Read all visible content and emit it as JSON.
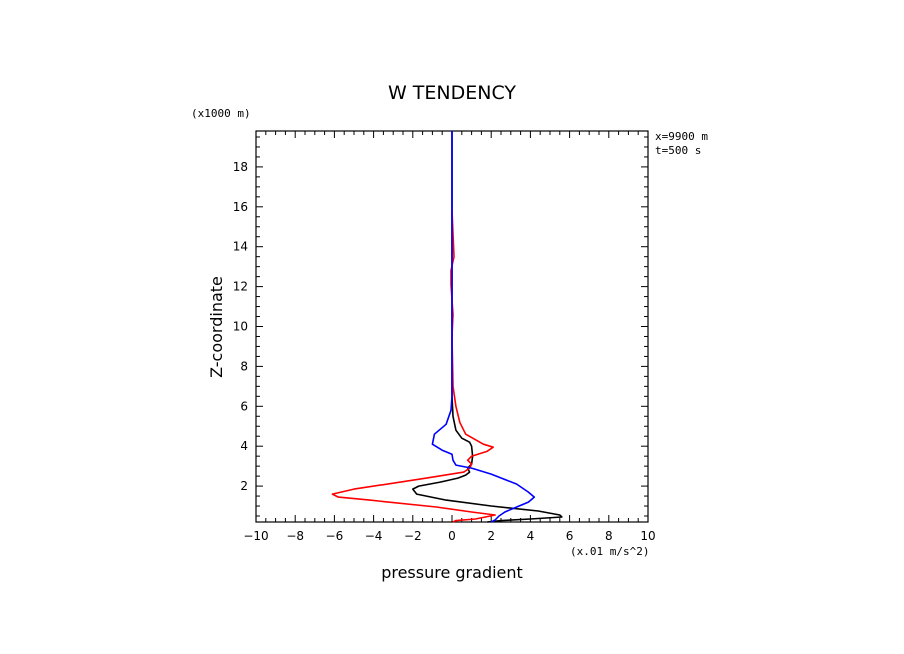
{
  "chart_data": {
    "type": "line",
    "title": "W TENDENCY",
    "xlabel": "pressure gradient",
    "ylabel": "Z-coordinate",
    "x_units": "(x.01 m/s^2)",
    "y_units": "(x1000 m)",
    "annotations": [
      "x=9900 m",
      "t=500 s"
    ],
    "xlim": [
      -10,
      10
    ],
    "ylim": [
      0.2,
      19.8
    ],
    "xticks": [
      "-10",
      "-8",
      "-6",
      "-4",
      "-2",
      "0",
      "2",
      "4",
      "6",
      "8",
      "10"
    ],
    "yticks": [
      "2",
      "4",
      "6",
      "8",
      "10",
      "12",
      "14",
      "16",
      "18"
    ],
    "grid": false,
    "series": [
      {
        "color": "#000000",
        "points": [
          [
            0,
            19.8
          ],
          [
            0,
            6.5
          ],
          [
            0.05,
            5.5
          ],
          [
            0.2,
            4.8
          ],
          [
            0.5,
            4.4
          ],
          [
            0.9,
            4.2
          ],
          [
            1.0,
            4.0
          ],
          [
            1.05,
            3.5
          ],
          [
            1.0,
            3.1
          ],
          [
            0.8,
            2.9
          ],
          [
            0.9,
            2.7
          ],
          [
            0.7,
            2.55
          ],
          [
            0.3,
            2.4
          ],
          [
            -0.6,
            2.2
          ],
          [
            -1.7,
            2.0
          ],
          [
            -2.0,
            1.85
          ],
          [
            -1.8,
            1.6
          ],
          [
            -0.3,
            1.3
          ],
          [
            2.0,
            1.0
          ],
          [
            4.4,
            0.75
          ],
          [
            5.5,
            0.55
          ],
          [
            5.6,
            0.45
          ],
          [
            4.0,
            0.35
          ],
          [
            2.5,
            0.27
          ],
          [
            1.8,
            0.2
          ]
        ]
      },
      {
        "color": "#ff0000",
        "points": [
          [
            0,
            15.8
          ],
          [
            0.1,
            13.5
          ],
          [
            -0.05,
            12.8
          ],
          [
            -0.05,
            12.1
          ],
          [
            0.05,
            10.6
          ],
          [
            0,
            9.5
          ],
          [
            0.05,
            7.0
          ],
          [
            0.2,
            6.0
          ],
          [
            0.4,
            5.2
          ],
          [
            0.7,
            4.6
          ],
          [
            1.6,
            4.1
          ],
          [
            2.1,
            3.95
          ],
          [
            1.8,
            3.75
          ],
          [
            1.0,
            3.5
          ],
          [
            0.8,
            3.3
          ],
          [
            1.0,
            3.1
          ],
          [
            0.9,
            2.9
          ],
          [
            0.6,
            2.7
          ],
          [
            -1.3,
            2.4
          ],
          [
            -5.0,
            1.85
          ],
          [
            -6.1,
            1.6
          ],
          [
            -5.8,
            1.45
          ],
          [
            -4.2,
            1.3
          ],
          [
            -0.8,
            0.95
          ],
          [
            1.0,
            0.7
          ],
          [
            2.2,
            0.55
          ],
          [
            1.2,
            0.35
          ],
          [
            0.2,
            0.27
          ],
          [
            0.05,
            0.2
          ]
        ]
      },
      {
        "color": "#0000ff",
        "points": [
          [
            0,
            19.8
          ],
          [
            0,
            6.5
          ],
          [
            -0.05,
            5.8
          ],
          [
            -0.3,
            5.1
          ],
          [
            -0.9,
            4.6
          ],
          [
            -1.0,
            4.1
          ],
          [
            -0.5,
            3.8
          ],
          [
            0.0,
            3.6
          ],
          [
            0.05,
            3.3
          ],
          [
            0.2,
            3.05
          ],
          [
            1.0,
            2.9
          ],
          [
            2.0,
            2.6
          ],
          [
            3.3,
            2.1
          ],
          [
            3.9,
            1.7
          ],
          [
            4.2,
            1.45
          ],
          [
            3.9,
            1.2
          ],
          [
            3.3,
            0.95
          ],
          [
            2.7,
            0.7
          ],
          [
            2.4,
            0.5
          ],
          [
            2.2,
            0.3
          ],
          [
            2.0,
            0.2
          ]
        ]
      }
    ]
  }
}
